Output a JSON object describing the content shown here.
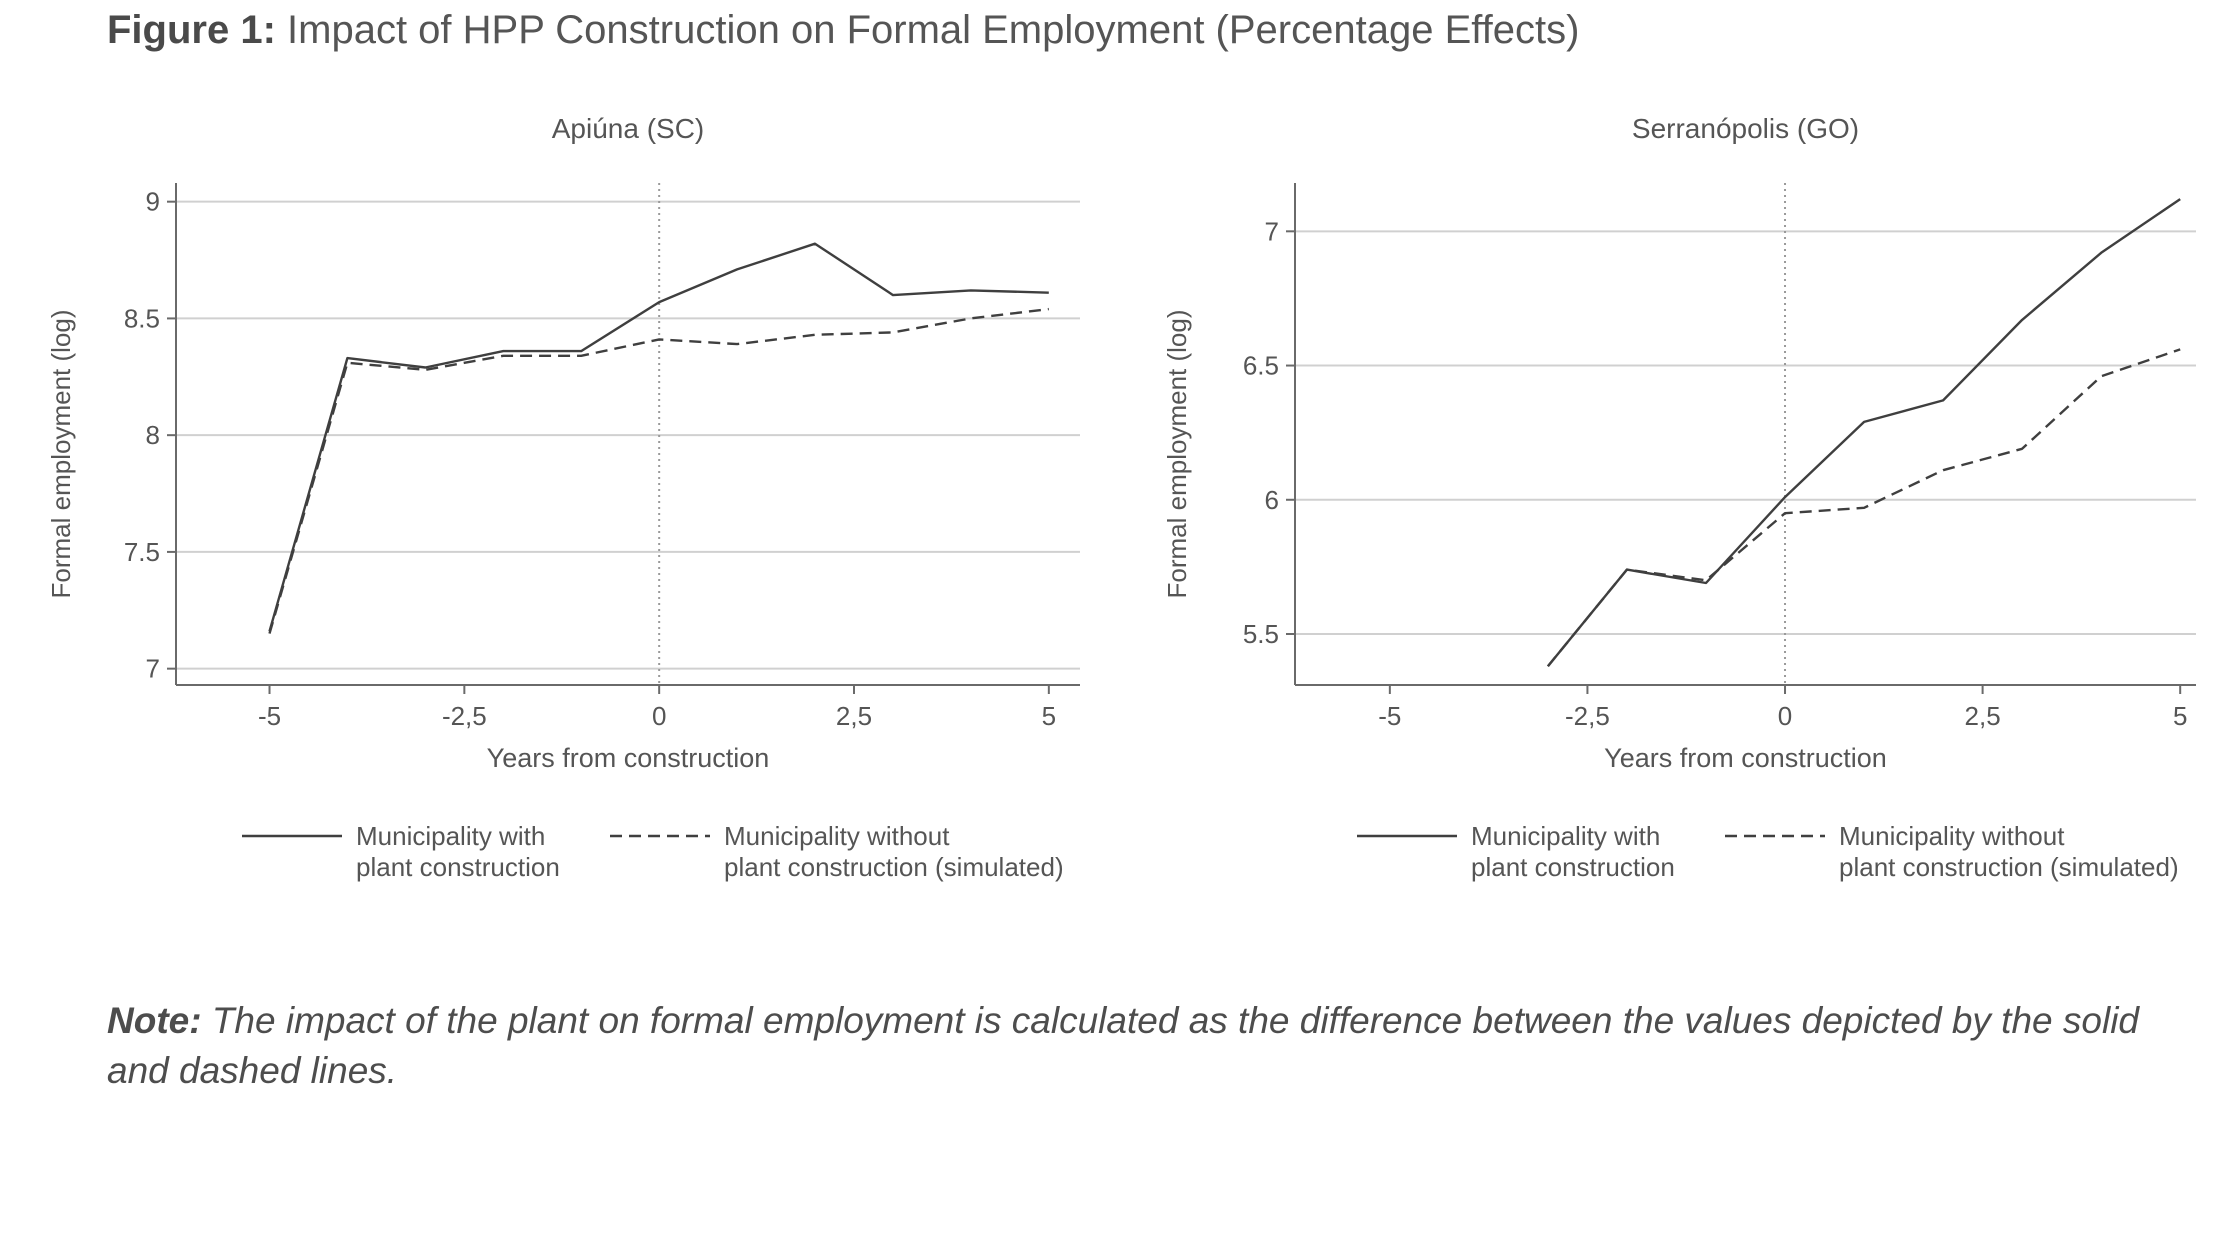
{
  "figure": {
    "label": "Figure 1:",
    "title": "Impact of HPP Construction on Formal Employment (Percentage Effects)",
    "note_label": "Note:",
    "note_text": "The impact of the plant on formal employment is calculated as the difference between the values depicted by the solid and dashed lines."
  },
  "chart_data": [
    {
      "type": "line",
      "title": "Apiúna (SC)",
      "xlabel": "Years from construction",
      "ylabel": "Formal employment (log)",
      "xlim": [
        -6.2,
        5.4
      ],
      "ylim": [
        6.93,
        9.08
      ],
      "xticks": [
        -5,
        -2.5,
        0,
        2.5,
        5
      ],
      "xtick_labels": [
        "-5",
        "-2,5",
        "0",
        "2,5",
        "5"
      ],
      "yticks": [
        7,
        7.5,
        8,
        8.5,
        9
      ],
      "ytick_labels": [
        "7",
        "7.5",
        "8",
        "8.5",
        "9"
      ],
      "grid": true,
      "vline_x": 0,
      "x": [
        -5,
        -4,
        -3,
        -2,
        -1,
        0,
        1,
        2,
        3,
        4,
        5
      ],
      "series": [
        {
          "name": "Municipality with plant construction",
          "style": "solid",
          "values": [
            7.16,
            8.33,
            8.29,
            8.36,
            8.36,
            8.57,
            8.71,
            8.82,
            8.6,
            8.62,
            8.61
          ]
        },
        {
          "name": "Municipality without plant construction (simulated)",
          "style": "dashed",
          "values": [
            7.15,
            8.31,
            8.28,
            8.34,
            8.34,
            8.41,
            8.39,
            8.43,
            8.44,
            8.5,
            8.54
          ]
        }
      ],
      "legend": [
        {
          "line1": "Municipality with",
          "line2": "plant construction"
        },
        {
          "line1": "Municipality without",
          "line2": "plant construction (simulated)"
        }
      ],
      "legend_position": "bottom"
    },
    {
      "type": "line",
      "title": "Serranópolis (GO)",
      "xlabel": "Years from construction",
      "ylabel": "Formal employment (log)",
      "xlim": [
        -6.2,
        5.2
      ],
      "ylim": [
        5.31,
        7.18
      ],
      "xticks": [
        -5,
        -2.5,
        0,
        2.5,
        5
      ],
      "xtick_labels": [
        "-5",
        "-2,5",
        "0",
        "2,5",
        "5"
      ],
      "yticks": [
        5.5,
        6,
        6.5,
        7
      ],
      "ytick_labels": [
        "5.5",
        "6",
        "6.5",
        "7"
      ],
      "grid": true,
      "vline_x": 0,
      "x": [
        -3,
        -2,
        -1,
        0,
        1,
        2,
        3,
        4,
        5
      ],
      "series": [
        {
          "name": "Municipality with plant construction",
          "style": "solid",
          "values": [
            5.38,
            5.74,
            5.69,
            6.01,
            6.29,
            6.37,
            6.67,
            6.92,
            7.12
          ]
        },
        {
          "name": "Municipality without plant construction (simulated)",
          "style": "dashed",
          "values": [
            5.38,
            5.74,
            5.7,
            5.95,
            5.97,
            6.11,
            6.19,
            6.46,
            6.56
          ]
        }
      ],
      "legend": [
        {
          "line1": "Municipality with",
          "line2": "plant construction"
        },
        {
          "line1": "Municipality without",
          "line2": "plant construction (simulated)"
        }
      ],
      "legend_position": "bottom"
    }
  ]
}
